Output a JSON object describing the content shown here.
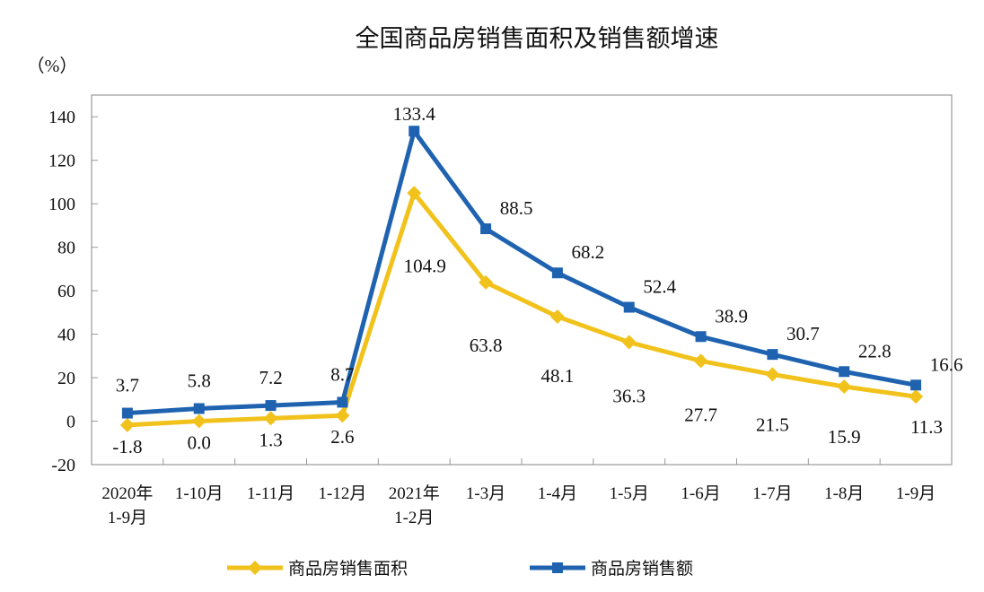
{
  "chart_data": {
    "type": "line",
    "title": "全国商品房销售面积及销售额增速",
    "ylabel": "（%）",
    "xlabel": "",
    "ylim": [
      -20,
      150
    ],
    "yticks": [
      -20,
      0,
      20,
      40,
      60,
      80,
      100,
      120,
      140
    ],
    "grid": false,
    "legend_position": "bottom",
    "categories": [
      [
        "2020年",
        "1-9月"
      ],
      [
        "1-10月"
      ],
      [
        "1-11月"
      ],
      [
        "1-12月"
      ],
      [
        "2021年",
        "1-2月"
      ],
      [
        "1-3月"
      ],
      [
        "1-4月"
      ],
      [
        "1-5月"
      ],
      [
        "1-6月"
      ],
      [
        "1-7月"
      ],
      [
        "1-8月"
      ],
      [
        "1-9月"
      ]
    ],
    "series": [
      {
        "name": "商品房销售面积",
        "color": "#f2c21c",
        "marker": "diamond",
        "values": [
          -1.8,
          0.0,
          1.3,
          2.6,
          104.9,
          63.8,
          48.1,
          36.3,
          27.7,
          21.5,
          15.9,
          11.3
        ],
        "labels": [
          "-1.8",
          "0.0",
          "1.3",
          "2.6",
          "104.9",
          "63.8",
          "48.1",
          "36.3",
          "27.7",
          "21.5",
          "15.9",
          "11.3"
        ]
      },
      {
        "name": "商品房销售额",
        "color": "#1f63b0",
        "marker": "square",
        "values": [
          3.7,
          5.8,
          7.2,
          8.7,
          133.4,
          88.5,
          68.2,
          52.4,
          38.9,
          30.7,
          22.8,
          16.6
        ],
        "labels": [
          "3.7",
          "5.8",
          "7.2",
          "8.7",
          "133.4",
          "88.5",
          "68.2",
          "52.4",
          "38.9",
          "30.7",
          "22.8",
          "16.6"
        ]
      }
    ]
  }
}
